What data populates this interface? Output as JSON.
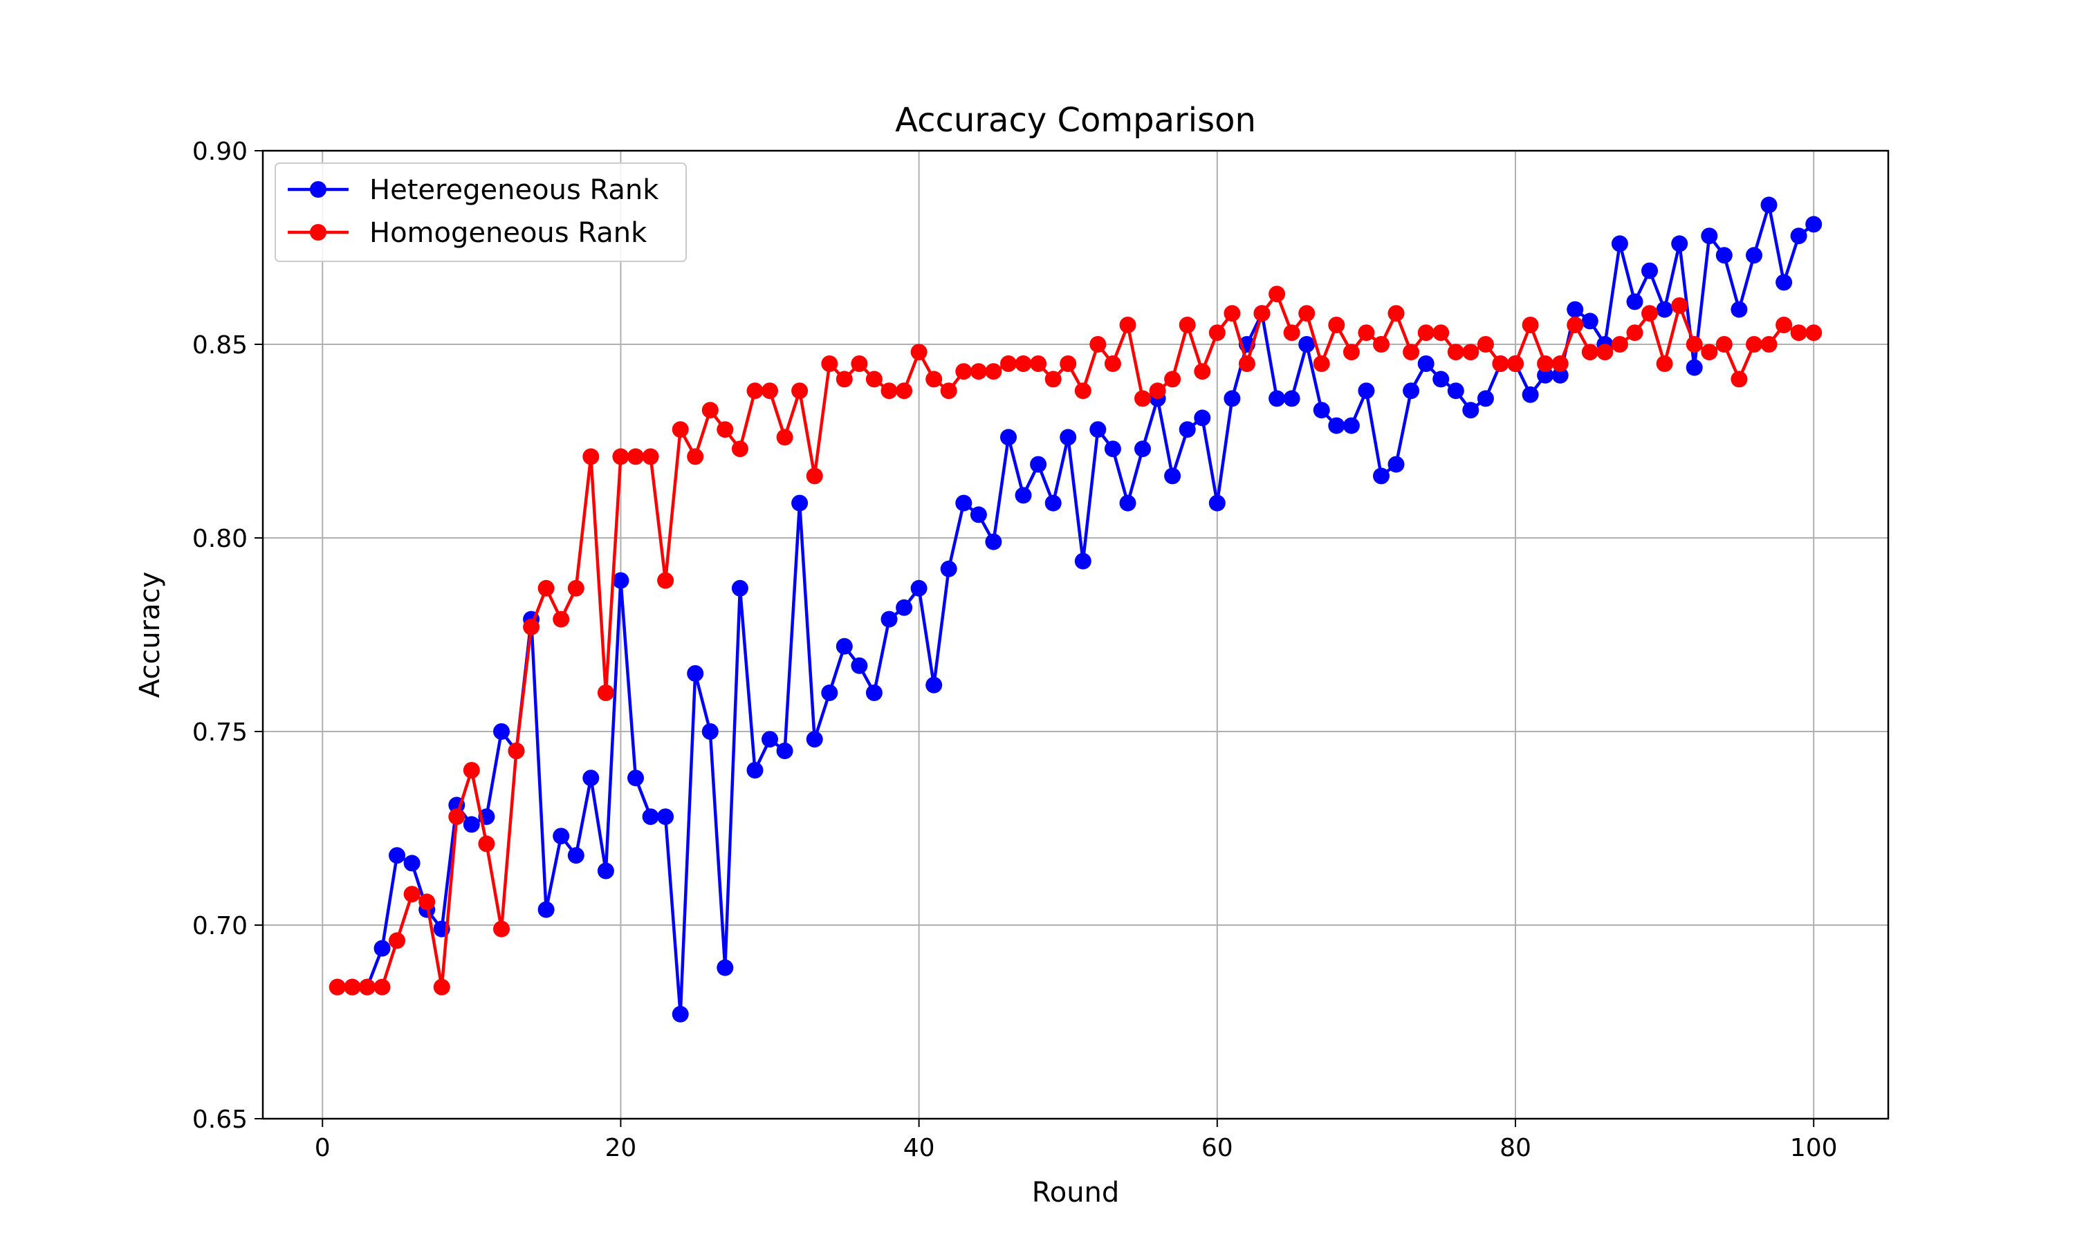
{
  "chart_data": {
    "type": "line",
    "title": "Accuracy Comparison",
    "xlabel": "Round",
    "ylabel": "Accuracy",
    "xlim": [
      -4,
      105
    ],
    "ylim": [
      0.65,
      0.9
    ],
    "xticks": [
      0,
      20,
      40,
      60,
      80,
      100
    ],
    "xtick_labels": [
      "0",
      "20",
      "40",
      "60",
      "80",
      "100"
    ],
    "yticks": [
      0.65,
      0.7,
      0.75,
      0.8,
      0.85,
      0.9
    ],
    "ytick_labels": [
      "0.65",
      "0.70",
      "0.75",
      "0.80",
      "0.85",
      "0.90"
    ],
    "grid": true,
    "legend_position": "top-left",
    "x": [
      1,
      2,
      3,
      4,
      5,
      6,
      7,
      8,
      9,
      10,
      11,
      12,
      13,
      14,
      15,
      16,
      17,
      18,
      19,
      20,
      21,
      22,
      23,
      24,
      25,
      26,
      27,
      28,
      29,
      30,
      31,
      32,
      33,
      34,
      35,
      36,
      37,
      38,
      39,
      40,
      41,
      42,
      43,
      44,
      45,
      46,
      47,
      48,
      49,
      50,
      51,
      52,
      53,
      54,
      55,
      56,
      57,
      58,
      59,
      60,
      61,
      62,
      63,
      64,
      65,
      66,
      67,
      68,
      69,
      70,
      71,
      72,
      73,
      74,
      75,
      76,
      77,
      78,
      79,
      80,
      81,
      82,
      83,
      84,
      85,
      86,
      87,
      88,
      89,
      90,
      91,
      92,
      93,
      94,
      95,
      96,
      97,
      98,
      99,
      100
    ],
    "series": [
      {
        "name": "Heteregeneous Rank",
        "color": "#0000ff",
        "values": [
          0.684,
          0.684,
          0.684,
          0.694,
          0.718,
          0.716,
          0.704,
          0.699,
          0.731,
          0.726,
          0.728,
          0.75,
          0.745,
          0.779,
          0.704,
          0.723,
          0.718,
          0.738,
          0.714,
          0.789,
          0.738,
          0.728,
          0.728,
          0.677,
          0.765,
          0.75,
          0.689,
          0.787,
          0.74,
          0.748,
          0.745,
          0.809,
          0.748,
          0.76,
          0.772,
          0.767,
          0.76,
          0.779,
          0.782,
          0.787,
          0.762,
          0.792,
          0.809,
          0.806,
          0.799,
          0.826,
          0.811,
          0.819,
          0.809,
          0.826,
          0.794,
          0.828,
          0.823,
          0.809,
          0.823,
          0.836,
          0.816,
          0.828,
          0.831,
          0.809,
          0.836,
          0.85,
          0.858,
          0.836,
          0.836,
          0.85,
          0.833,
          0.829,
          0.829,
          0.838,
          0.816,
          0.819,
          0.838,
          0.845,
          0.841,
          0.838,
          0.833,
          0.836,
          0.845,
          0.845,
          0.837,
          0.842,
          0.842,
          0.859,
          0.856,
          0.85,
          0.876,
          0.861,
          0.869,
          0.859,
          0.876,
          0.844,
          0.878,
          0.873,
          0.859,
          0.873,
          0.886,
          0.866,
          0.878,
          0.881
        ]
      },
      {
        "name": "Homogeneous Rank",
        "color": "#ff0000",
        "values": [
          0.684,
          0.684,
          0.684,
          0.684,
          0.696,
          0.708,
          0.706,
          0.684,
          0.728,
          0.74,
          0.721,
          0.699,
          0.745,
          0.777,
          0.787,
          0.779,
          0.787,
          0.821,
          0.76,
          0.821,
          0.821,
          0.821,
          0.789,
          0.828,
          0.821,
          0.833,
          0.828,
          0.823,
          0.838,
          0.838,
          0.826,
          0.838,
          0.816,
          0.845,
          0.841,
          0.845,
          0.841,
          0.838,
          0.838,
          0.848,
          0.841,
          0.838,
          0.843,
          0.843,
          0.843,
          0.845,
          0.845,
          0.845,
          0.841,
          0.845,
          0.838,
          0.85,
          0.845,
          0.855,
          0.836,
          0.838,
          0.841,
          0.855,
          0.843,
          0.853,
          0.858,
          0.845,
          0.858,
          0.863,
          0.853,
          0.858,
          0.845,
          0.855,
          0.848,
          0.853,
          0.85,
          0.858,
          0.848,
          0.853,
          0.853,
          0.848,
          0.848,
          0.85,
          0.845,
          0.845,
          0.855,
          0.845,
          0.845,
          0.855,
          0.848,
          0.848,
          0.85,
          0.853,
          0.858,
          0.845,
          0.86,
          0.85,
          0.848,
          0.85,
          0.841,
          0.85,
          0.85,
          0.855,
          0.853,
          0.853
        ]
      }
    ]
  }
}
